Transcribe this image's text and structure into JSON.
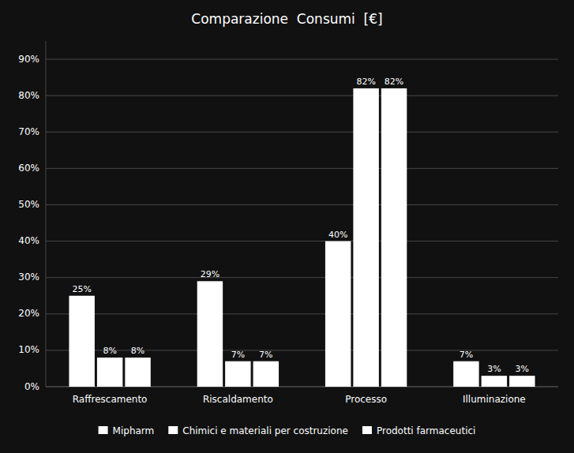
{
  "chart_data": {
    "type": "bar",
    "title": "Comparazione  Consumi  [€]",
    "categories": [
      "Raffrescamento",
      "Riscaldamento",
      "Processo",
      "Illuminazione"
    ],
    "series": [
      {
        "name": "Mipharm",
        "color": "#ffffff",
        "values": [
          25,
          29,
          40,
          7
        ],
        "value_labels": [
          "25%",
          "29%",
          "40%",
          "7%"
        ]
      },
      {
        "name": "Chimici e materiali per costruzione",
        "color": "#ffffff",
        "values": [
          8,
          7,
          82,
          3
        ],
        "value_labels": [
          "8%",
          "7%",
          "82%",
          "3%"
        ]
      },
      {
        "name": "Prodotti farmaceutici",
        "color": "#ffffff",
        "values": [
          8,
          7,
          82,
          3
        ],
        "value_labels": [
          "8%",
          "7%",
          "82%",
          "3%"
        ]
      }
    ],
    "ylim": [
      0,
      95
    ],
    "yticks": [
      {
        "value": 0,
        "label": "0%"
      },
      {
        "value": 10,
        "label": "10%"
      },
      {
        "value": 20,
        "label": "20%"
      },
      {
        "value": 30,
        "label": "30%"
      },
      {
        "value": 40,
        "label": "40%"
      },
      {
        "value": 50,
        "label": "50%"
      },
      {
        "value": 60,
        "label": "60%"
      },
      {
        "value": 70,
        "label": "70%"
      },
      {
        "value": 80,
        "label": "80%"
      },
      {
        "value": 90,
        "label": "90%"
      }
    ],
    "grid": true,
    "legend": "bottom",
    "data_labels": true
  }
}
